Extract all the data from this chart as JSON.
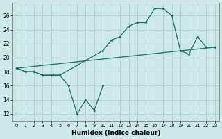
{
  "xlabel": "Humidex (Indice chaleur)",
  "background_color": "#cce8e8",
  "grid_color": "#aacece",
  "line_color": "#1a6b60",
  "xlim": [
    -0.5,
    23.5
  ],
  "ylim": [
    11.0,
    27.8
  ],
  "yticks": [
    12,
    14,
    16,
    18,
    20,
    22,
    24,
    26
  ],
  "xticks": [
    0,
    1,
    2,
    3,
    4,
    5,
    6,
    7,
    8,
    9,
    10,
    11,
    12,
    13,
    14,
    15,
    16,
    17,
    18,
    19,
    20,
    21,
    22,
    23
  ],
  "series": [
    {
      "x": [
        0,
        1,
        2,
        3,
        4,
        5,
        6,
        7,
        8,
        9,
        10
      ],
      "y": [
        18.5,
        18.0,
        18.0,
        17.5,
        17.5,
        17.5,
        16.0,
        12.0,
        14.0,
        12.5,
        16.0
      ],
      "marker": true
    },
    {
      "x": [
        0,
        1,
        2,
        3,
        4,
        5,
        10,
        11,
        12,
        13,
        14,
        15,
        16,
        17,
        18,
        19,
        20,
        21,
        22,
        23
      ],
      "y": [
        18.5,
        18.0,
        18.0,
        17.5,
        17.5,
        17.5,
        21.0,
        22.5,
        23.0,
        24.5,
        25.0,
        25.0,
        27.0,
        27.0,
        26.0,
        21.0,
        20.5,
        23.0,
        21.5,
        21.5
      ],
      "marker": true
    },
    {
      "x": [
        0,
        23
      ],
      "y": [
        18.5,
        21.5
      ],
      "marker": false
    }
  ]
}
